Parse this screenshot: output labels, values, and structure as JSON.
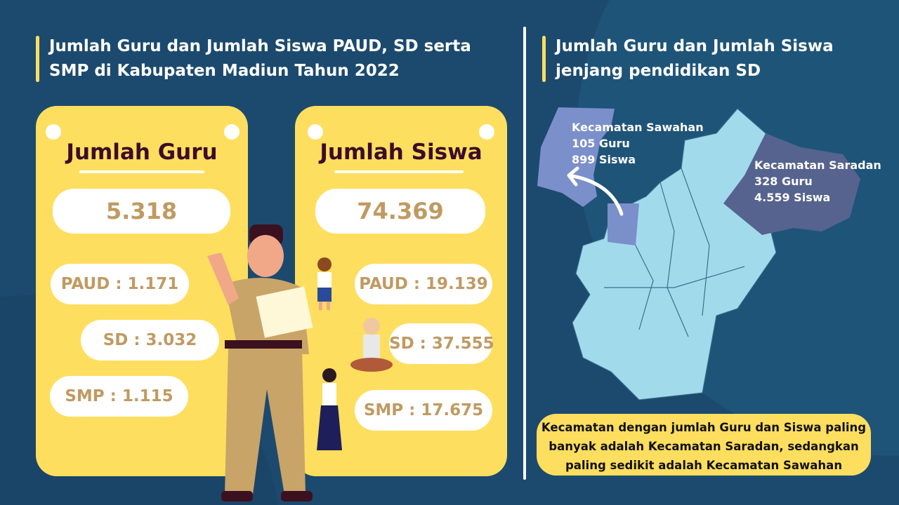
{
  "left_title": "Jumlah Guru dan Jumlah Siswa PAUD, SD serta SMP di Kabupaten Madiun Tahun 2022",
  "right_title": "Jumlah Guru dan Jumlah Siswa jenjang pendidikan SD",
  "guru": {
    "heading": "Jumlah Guru",
    "total": "5.318",
    "paud": "PAUD : 1.171",
    "sd": "SD : 3.032",
    "smp": "SMP : 1.115"
  },
  "siswa": {
    "heading": "Jumlah Siswa",
    "total": "74.369",
    "paud": "PAUD : 19.139",
    "sd": "SD : 37.555",
    "smp": "SMP : 17.675"
  },
  "map": {
    "sawahan": {
      "name": "Kecamatan Sawahan",
      "guru": "105 Guru",
      "siswa": "899 Siswa"
    },
    "saradan": {
      "name": "Kecamatan Saradan",
      "guru": "328 Guru",
      "siswa": "4.559 Siswa"
    }
  },
  "note": "Kecamatan dengan jumlah Guru dan Siswa paling banyak adalah Kecamatan Saradan, sedangkan paling sedikit adalah Kecamatan Sawahan",
  "colors": {
    "background": "#1c4a6e",
    "card": "#fede5e",
    "pill_text": "#c09a62",
    "heading": "#3c0c2a",
    "map_base": "#a1dbeb",
    "sawahan": "#7b8fcb",
    "saradan": "#56638f"
  }
}
